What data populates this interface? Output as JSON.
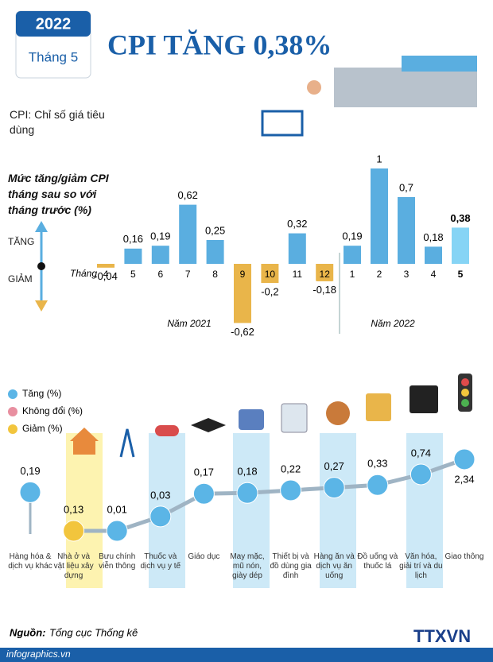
{
  "header": {
    "year": "2022",
    "month_label": "Tháng 5",
    "title": "CPI TĂNG 0,38%",
    "cpi_note": "CPI: Chỉ số giá tiêu dùng"
  },
  "chart_data": [
    {
      "type": "bar",
      "axis_label": "Mức tăng/giảm CPI tháng sau so với tháng trước (%)",
      "up_label": "TĂNG",
      "down_label": "GIẢM",
      "category_title": "Tháng",
      "categories": [
        "4",
        "5",
        "6",
        "7",
        "8",
        "9",
        "10",
        "11",
        "12",
        "1",
        "2",
        "3",
        "4",
        "5"
      ],
      "values": [
        -0.04,
        0.16,
        0.19,
        0.62,
        0.25,
        -0.62,
        -0.2,
        0.32,
        -0.18,
        0.19,
        1,
        0.7,
        0.18,
        0.38
      ],
      "value_labels": [
        "-0,04",
        "0,16",
        "0,19",
        "0,62",
        "0,25",
        "-0,62",
        "-0,2",
        "0,32",
        "-0,18",
        "0,19",
        "1",
        "0,7",
        "0,18",
        "0,38"
      ],
      "colors": [
        "#e9b54a",
        "#5aaee0",
        "#5aaee0",
        "#5aaee0",
        "#5aaee0",
        "#e9b54a",
        "#e9b54a",
        "#5aaee0",
        "#e9b54a",
        "#5aaee0",
        "#5aaee0",
        "#5aaee0",
        "#5aaee0",
        "#86d4f5"
      ],
      "highlighted": [
        5,
        6,
        8
      ],
      "highlight_color": "#f1c25a",
      "year_labels": [
        "Năm 2021",
        "Năm 2022"
      ]
    },
    {
      "type": "bubble-line",
      "series": [
        {
          "name": "Tăng (%)",
          "color": "#5bb5e6"
        },
        {
          "name": "Không đổi (%)",
          "color": "#e88fa0"
        },
        {
          "name": "Giảm (%)",
          "color": "#f2c53d"
        }
      ],
      "categories": [
        "Hàng hóa & dịch vụ khác",
        "Nhà ở và vật liệu xây dựng",
        "Bưu chính viễn thông",
        "Thuốc và dịch vụ y tế",
        "Giáo dục",
        "May mặc, mũ nón, giày dép",
        "Thiết bị và đồ dùng gia đình",
        "Hàng ăn và dịch vụ ăn uống",
        "Đồ uống và thuốc lá",
        "Văn hóa, giải trí và du lịch",
        "Giao thông"
      ],
      "values": [
        0.19,
        0.13,
        0.01,
        0.03,
        0.17,
        0.18,
        0.22,
        0.27,
        0.33,
        0.74,
        2.34
      ],
      "value_labels": [
        "0,19",
        "0,13",
        "0,01",
        "0,03",
        "0,17",
        "0,18",
        "0,22",
        "0,27",
        "0,33",
        "0,74",
        "2,34"
      ],
      "point_colors": [
        "#5bb5e6",
        "#f2c53d",
        "#5bb5e6",
        "#5bb5e6",
        "#5bb5e6",
        "#5bb5e6",
        "#5bb5e6",
        "#5bb5e6",
        "#5bb5e6",
        "#5bb5e6",
        "#5bb5e6"
      ]
    }
  ],
  "footer": {
    "source_label": "Nguồn:",
    "source": "Tổng cục Thống kê",
    "site": "infographics.vn",
    "logo": "TTXVN"
  }
}
